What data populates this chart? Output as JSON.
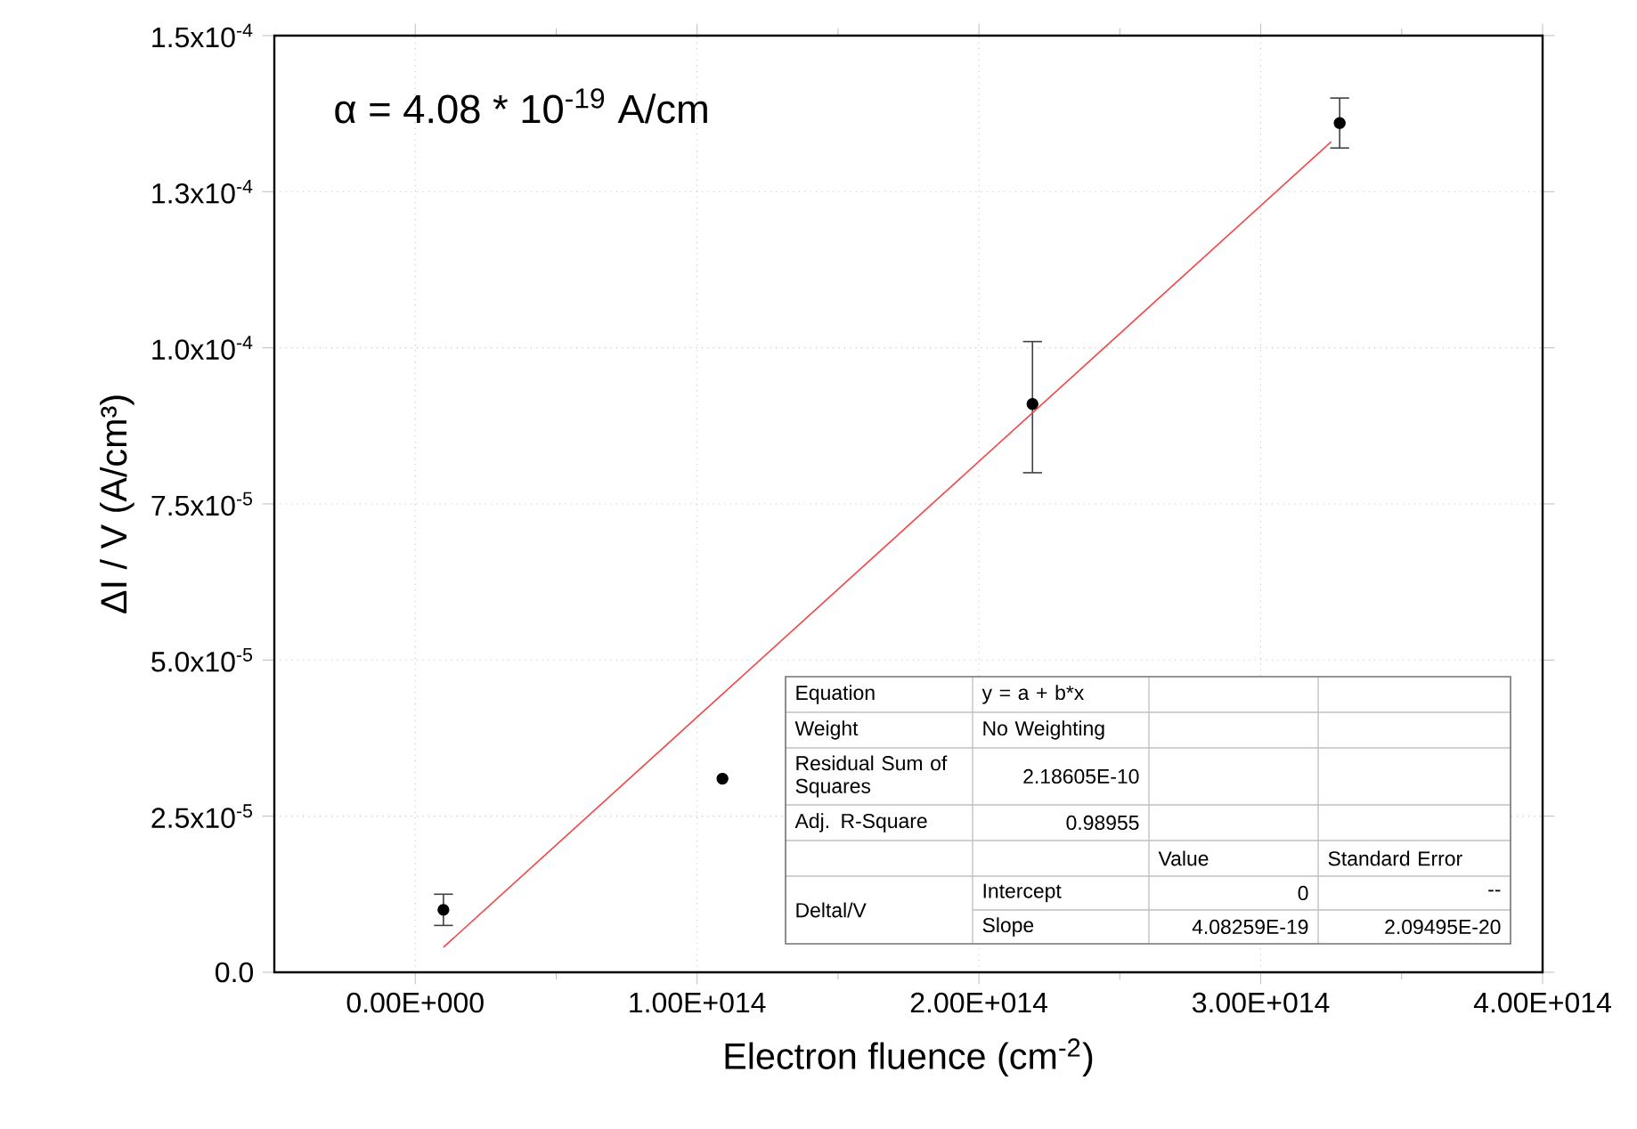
{
  "chart_data": {
    "type": "scatter",
    "xlabel": "Electron fluence (cm$^{-2}$)",
    "ylabel": "ΔI / V (A/cm³)",
    "series": [
      {
        "color": "#000000",
        "marker": "circle",
        "x": [
          10000000000000.0,
          109000000000000.0,
          219000000000000.0,
          328000000000000.0
        ],
        "values": [
          1e-05,
          3.1e-05,
          9.1e-05,
          0.000136
        ],
        "errors": [
          2.5e-06,
          null,
          [
            8e-05,
            0.000101
          ],
          4e-06
        ]
      },
      {
        "type": "line",
        "color": "#f04848",
        "marker": "none",
        "line_style": "solid",
        "x": [
          10000000000000.0,
          325000000000000.0
        ],
        "values": [
          4e-06,
          0.000133
        ]
      }
    ],
    "xlim": [
      -50000000000000.0,
      400000000000000.0
    ],
    "xticks": [
      {
        "value": 0,
        "label": "0.00E+000"
      },
      {
        "value": 100000000000000.0,
        "label": "1.00E+014"
      },
      {
        "value": 200000000000000.0,
        "label": "2.00E+014"
      },
      {
        "value": 300000000000000.0,
        "label": "3.00E+014"
      },
      {
        "value": 400000000000000.0,
        "label": "4.00E+014"
      }
    ],
    "ylim": [
      0,
      0.00015
    ],
    "yticks": [
      {
        "value": 0,
        "label": "0.0"
      },
      {
        "value": 2.5e-05,
        "label": "2.5x10$^{-5}$"
      },
      {
        "value": 5e-05,
        "label": "5.0x10$^{-5}$"
      },
      {
        "value": 7.5e-05,
        "label": "7.5x10$^{-5}$"
      },
      {
        "value": 0.0001,
        "label": "1.0x10$^{-4}$"
      },
      {
        "value": 0.000125,
        "label": "1.3x10$^{-4}$"
      },
      {
        "value": 0.00015,
        "label": "1.5x10$^{-4}$"
      }
    ],
    "grid": true,
    "annotations": [
      "α = 4.08 * 10$^{-19}$ A/cm",
      "Equation",
      "y = a + b*x",
      "Weight",
      "No Weighting",
      "Residual Sum of Squares",
      "2.18605E-10",
      "Adj. R-Square",
      "0.98955",
      "Value",
      "Standard Error",
      "Deltal/V",
      "Intercept",
      "0",
      "--",
      "Slope",
      "4.08259E-19",
      "2.09495E-20"
    ]
  }
}
